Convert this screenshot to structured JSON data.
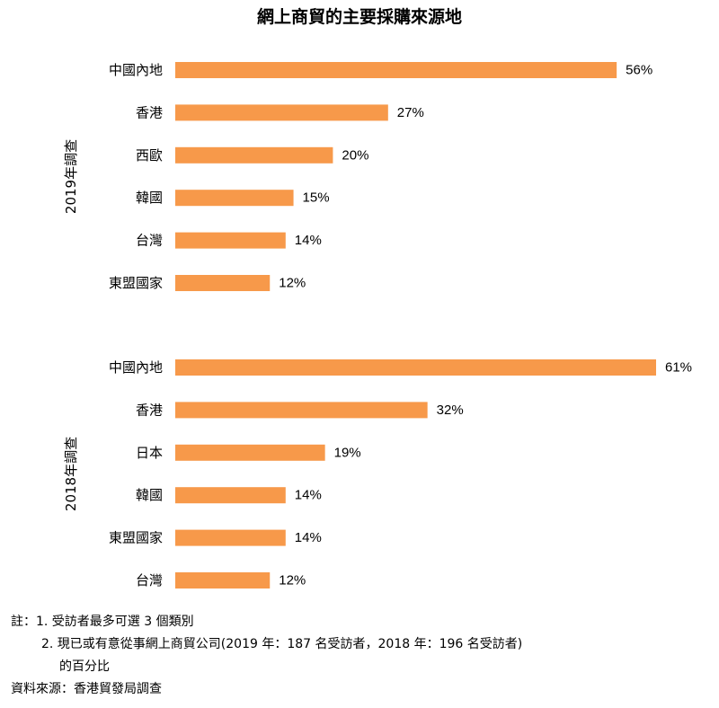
{
  "chart_data": {
    "type": "bar",
    "orientation": "horizontal",
    "title": "網上商貿的主要採購來源地",
    "bar_color": "#F7994A",
    "value_suffix": "%",
    "xlim": [
      0,
      61
    ],
    "groups": [
      {
        "label": "2019年調查",
        "categories": [
          "中國內地",
          "香港",
          "西歐",
          "韓國",
          "台灣",
          "東盟國家"
        ],
        "values": [
          56,
          27,
          20,
          15,
          14,
          12
        ]
      },
      {
        "label": "2018年調查",
        "categories": [
          "中國內地",
          "香港",
          "日本",
          "韓國",
          "東盟國家",
          "台灣"
        ],
        "values": [
          61,
          32,
          19,
          14,
          14,
          12
        ]
      }
    ]
  },
  "notes": {
    "line1": "註：1. 受訪者最多可選 3 個類別",
    "line2": "2. 現已或有意從事網上商貿公司(2019 年：187 名受訪者，2018 年：196 名受訪者)",
    "line3": "的百分比",
    "source": "資料來源：香港貿發局調查"
  }
}
